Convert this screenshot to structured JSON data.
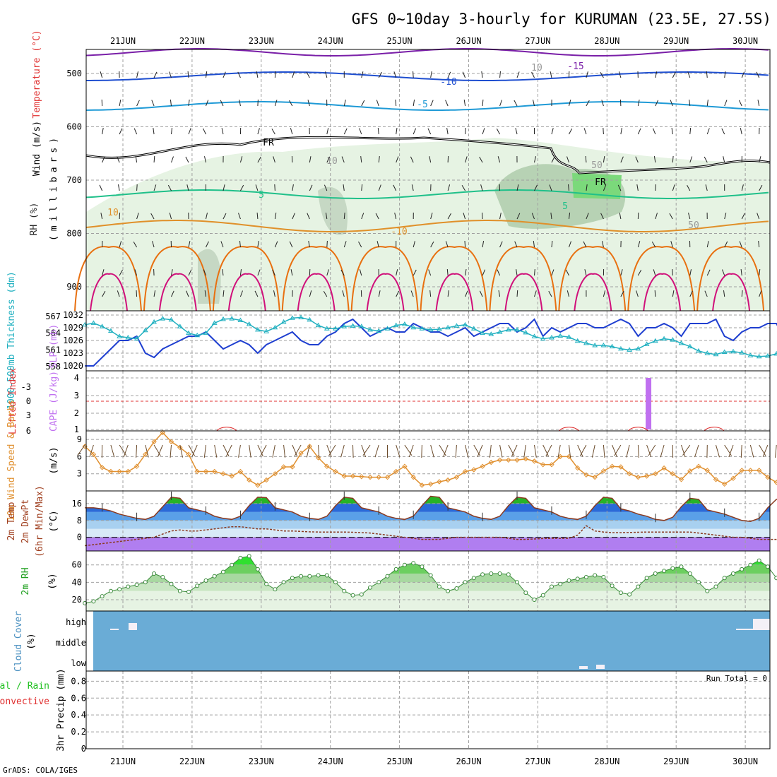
{
  "title": "GFS 0~10day 3-hourly for KURUMAN (23.5E, 27.5S)",
  "footer": "GrADS: COLA/IGES",
  "dates": [
    "21JUN",
    "22JUN",
    "23JUN",
    "24JUN",
    "25JUN",
    "26JUN",
    "27JUN",
    "28JUN",
    "29JUN",
    "30JUN"
  ],
  "colors": {
    "grid": "#a0a0a0",
    "rh_green": "#8fd68f",
    "temp_purple": "#7a1fa8",
    "temp_blue": "#1f4fd0",
    "temp_sky": "#1f9ad6",
    "temp_teal": "#20c08a",
    "temp_orange": "#e0902a",
    "temp_dorange": "#e87010",
    "temp_magenta": "#d0107a",
    "slp_blue": "#1f3fd0",
    "thick_cyan": "#20b0c0",
    "cape_purple": "#c070f0",
    "li_red": "#e03030",
    "wind_orange": "#e09030",
    "barb_brown": "#6a4a2a",
    "cloud_blue": "#6aacd6"
  },
  "chart_data": [
    {
      "type": "line",
      "panel": "upper-air",
      "ylabel": "(millibars)",
      "ylabel_left": [
        "Wind (m/s)",
        "Temperature (°C)",
        "RH (%)"
      ],
      "yticks": [
        500,
        600,
        700,
        800,
        900
      ],
      "contour_labels": [
        "-15",
        "-10",
        "-5",
        "FR",
        "5",
        "10",
        "-10",
        "-5",
        "5",
        "FR",
        "-10",
        "10",
        "50",
        "50",
        "10"
      ]
    },
    {
      "type": "line",
      "panel": "slp-thickness",
      "ylabel_left": "1000-500mb Thickness (dm)",
      "ylabel_right": "SLP (mb)",
      "yticks_left": [
        558,
        561,
        564,
        567
      ],
      "yticks_right": [
        1020,
        1023,
        1026,
        1029,
        1032
      ],
      "series": [
        {
          "name": "SLP",
          "values": [
            1020,
            1020,
            1022,
            1024,
            1026,
            1026,
            1027,
            1023,
            1022,
            1024,
            1025,
            1026,
            1027,
            1027,
            1028,
            1026,
            1024,
            1025,
            1026,
            1025,
            1023,
            1025,
            1026,
            1027,
            1028,
            1026,
            1025,
            1025,
            1027,
            1028,
            1030,
            1031,
            1029,
            1027,
            1028,
            1029,
            1028,
            1028,
            1030,
            1029,
            1028,
            1028,
            1027,
            1028,
            1029,
            1027,
            1028,
            1029,
            1030,
            1030,
            1028,
            1029,
            1031,
            1027,
            1029,
            1028,
            1029,
            1030,
            1030,
            1029,
            1029,
            1030,
            1031,
            1030,
            1027,
            1029,
            1029,
            1030,
            1029,
            1027,
            1030,
            1030,
            1030,
            1031,
            1027,
            1026,
            1028,
            1029,
            1029,
            1030,
            1030,
            1026,
            1027,
            1028,
            1028,
            1027,
            1027,
            1025,
            1026,
            1027,
            1025,
            1023,
            1023,
            1024,
            1024,
            1023,
            1024
          ]
        },
        {
          "name": "Thickness",
          "values": [
            565.5,
            565.8,
            565.2,
            564.4,
            563.4,
            563.2,
            563.0,
            564.5,
            566.0,
            566.6,
            566.4,
            565.2,
            564.0,
            563.6,
            564.0,
            565.8,
            566.5,
            566.6,
            566.3,
            565.6,
            564.6,
            564.3,
            565.0,
            566.0,
            566.7,
            566.8,
            566.4,
            565.4,
            564.8,
            564.8,
            565.2,
            565.3,
            565.2,
            564.6,
            564.4,
            564.8,
            565.4,
            565.6,
            565.0,
            564.8,
            564.6,
            564.7,
            565.0,
            565.3,
            565.5,
            564.8,
            564.0,
            563.8,
            564.2,
            564.6,
            564.6,
            564.1,
            563.4,
            563.0,
            563.2,
            563.5,
            563.3,
            562.6,
            562.2,
            561.8,
            561.8,
            561.6,
            561.2,
            561.0,
            561.2,
            562.0,
            562.6,
            563.0,
            562.8,
            562.2,
            561.6,
            560.8,
            560.4,
            560.2,
            560.6,
            560.7,
            560.5,
            560.0,
            559.8,
            559.9,
            560.3,
            560.8,
            560.6,
            559.9,
            559.4,
            559.5,
            560.0,
            560.9,
            562.0,
            562.8,
            563.0,
            562.7,
            562.4,
            562.3,
            562.5,
            562.2,
            561.2
          ]
        }
      ]
    },
    {
      "type": "bar",
      "panel": "cape-li",
      "ylabel_left": "Lifted Index",
      "ylabel_right": "CAPE (J/kg)",
      "yticks_left": [
        "-3",
        "0",
        "3",
        "6"
      ],
      "yticks_right": [
        "1",
        "2",
        "3",
        "4"
      ],
      "cape_bar_day": 7.6,
      "cape_value": 4,
      "li_bumps": [
        1.5,
        6.45,
        7.45,
        8.55
      ]
    },
    {
      "type": "line",
      "panel": "10m-wind",
      "ylabel_left": "10m Wind Speed & Barbs",
      "ylabel_unit": "(m/s)",
      "yticks": [
        3,
        6,
        9
      ],
      "series": [
        {
          "name": "Wind Speed",
          "values": [
            7.8,
            6.4,
            4.1,
            3.4,
            3.4,
            3.4,
            4.3,
            6.4,
            8.6,
            10.2,
            8.6,
            7.6,
            6.4,
            3.4,
            3.4,
            3.4,
            3.0,
            2.6,
            3.4,
            1.9,
            1.0,
            1.9,
            3.0,
            4.2,
            4.2,
            6.6,
            7.8,
            5.8,
            4.3,
            3.4,
            2.6,
            2.6,
            2.5,
            2.4,
            2.4,
            2.4,
            3.4,
            4.3,
            2.4,
            1.0,
            1.2,
            1.6,
            1.9,
            2.4,
            3.4,
            3.7,
            4.3,
            5.0,
            5.4,
            5.4,
            5.4,
            5.6,
            5.2,
            4.6,
            4.6,
            6.0,
            6.0,
            4.0,
            2.8,
            2.4,
            3.5,
            4.3,
            4.2,
            3.0,
            2.4,
            2.6,
            3.0,
            4.0,
            3.0,
            2.0,
            3.5,
            4.3,
            3.6,
            2.0,
            1.2,
            2.2,
            3.6,
            3.6,
            3.6,
            2.4,
            1.5,
            2.3,
            2.6,
            3.0,
            2.4,
            1.8,
            1.6,
            2.4,
            2.0,
            1.8,
            1.5,
            1.8,
            2.2,
            1.8,
            1.4,
            1.2,
            2.8
          ]
        }
      ]
    },
    {
      "type": "area",
      "panel": "2m-temp",
      "ylabel_left": [
        "2m Temp",
        "2m DewPt",
        "(6hr Min/Max)"
      ],
      "ylabel_unit": "(°C)",
      "yticks": [
        0,
        8,
        16
      ],
      "series": [
        {
          "name": "2m Temp",
          "values": [
            14,
            14,
            13.5,
            12.5,
            11,
            10,
            9,
            8.5,
            10,
            14.5,
            19,
            18.5,
            14,
            13,
            12,
            10,
            9,
            8.5,
            10,
            15,
            19,
            18.8,
            14,
            13,
            12,
            10,
            9,
            8.5,
            10,
            15,
            19,
            18.5,
            14,
            13,
            12,
            10,
            9,
            8.5,
            10,
            15,
            19.5,
            19,
            14,
            13,
            12,
            10,
            9,
            8.5,
            10,
            15,
            19,
            18.5,
            14,
            13,
            12,
            10,
            9,
            8.5,
            10,
            15,
            19,
            18.5,
            13.5,
            12.5,
            11,
            10,
            8.5,
            8,
            9.5,
            14.5,
            18.5,
            18,
            13,
            12,
            11,
            9.5,
            8,
            7.5,
            9,
            14,
            18,
            17.5,
            12.5,
            11.5,
            10,
            9,
            8,
            7.5,
            9,
            13,
            17,
            16.5,
            11,
            9,
            7,
            6,
            5.5
          ]
        },
        {
          "name": "2m DewPt",
          "values": [
            -4,
            -3.5,
            -3,
            -2.5,
            -2,
            -1.5,
            -1,
            -0.5,
            0,
            1.5,
            3,
            3.5,
            3,
            3,
            3.5,
            4,
            4.5,
            5,
            5,
            4.5,
            4,
            4,
            3.5,
            3,
            3,
            2.8,
            2.6,
            2.5,
            2.5,
            2.5,
            2.5,
            2.4,
            2.2,
            2,
            1.5,
            1,
            0.5,
            0,
            -0.5,
            -1,
            -1,
            -1,
            -0.5,
            0,
            0,
            0,
            0,
            0,
            0,
            -0.5,
            -1,
            -1,
            -0.8,
            -0.6,
            -0.5,
            -0.5,
            -0.5,
            1,
            5.5,
            3,
            2.5,
            2.2,
            2.2,
            2.3,
            2.4,
            2.5,
            2.5,
            2.5,
            2.5,
            2.5,
            2.5,
            2,
            1.5,
            1,
            0.5,
            0,
            0,
            -0.5,
            -1,
            -1,
            -1,
            -0.5,
            0,
            -0.5,
            -1,
            -1.5,
            -1.5,
            -1,
            -0.5,
            -1,
            -1.5,
            -2,
            -2,
            -1.5,
            -1,
            -1.5,
            -2.5
          ]
        }
      ]
    },
    {
      "type": "area",
      "panel": "2m-rh",
      "ylabel_left": "2m RH",
      "ylabel_unit": "(%)",
      "yticks": [
        20,
        40,
        60
      ],
      "series": [
        {
          "name": "2m RH",
          "values": [
            16,
            18,
            24,
            30,
            32,
            35,
            37,
            40,
            50,
            46,
            38,
            30,
            29,
            36,
            42,
            47,
            52,
            60,
            68,
            70,
            55,
            38,
            32,
            40,
            45,
            47,
            47,
            48,
            48,
            40,
            30,
            25,
            26,
            34,
            40,
            47,
            55,
            60,
            62,
            58,
            48,
            35,
            30,
            33,
            40,
            45,
            49,
            50,
            50,
            49,
            40,
            28,
            20,
            25,
            35,
            38,
            42,
            44,
            46,
            48,
            46,
            36,
            28,
            26,
            35,
            45,
            50,
            53,
            56,
            58,
            50,
            40,
            30,
            35,
            45,
            50,
            55,
            60,
            65,
            58,
            45,
            30,
            27,
            34,
            44,
            50,
            54,
            52,
            45,
            32,
            26,
            28,
            38,
            44,
            52,
            60,
            47
          ]
        }
      ]
    },
    {
      "type": "bar",
      "panel": "cloud-cover",
      "ylabel_left": "Cloud Cover",
      "ylabel_unit": "(%)",
      "yticks": [
        "high",
        "middle",
        "low"
      ]
    },
    {
      "type": "bar",
      "panel": "precip",
      "ylabel_left": [
        "Total / Rain",
        "Convective"
      ],
      "ylabel_unit": "3hr Precip (mm)",
      "yticks": [
        "0",
        "0.2",
        "0.4",
        "0.6",
        "0.8"
      ],
      "run_total": "Run Total = 0"
    }
  ]
}
